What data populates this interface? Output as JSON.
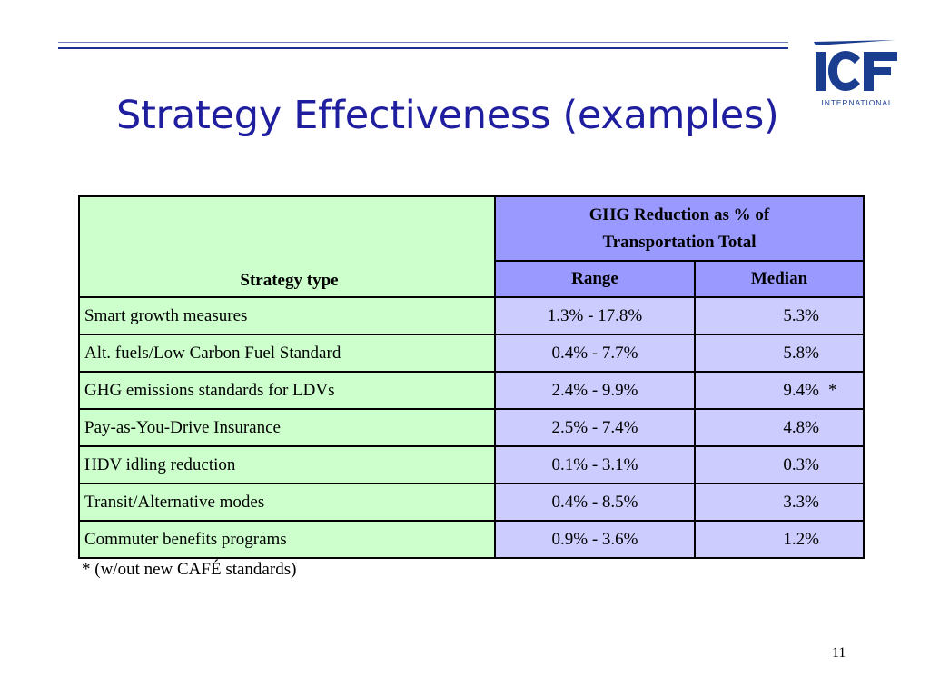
{
  "logo": {
    "text": "ICF",
    "subtext": "INTERNATIONAL",
    "color": "#1a3d8f"
  },
  "title": "Strategy Effectiveness (examples)",
  "table": {
    "strategy_header": "Strategy type",
    "group_header": "GHG Reduction as % of Transportation Total",
    "range_header": "Range",
    "median_header": "Median",
    "rows": [
      {
        "strategy": "Smart growth measures",
        "range": "1.3% - 17.8%",
        "median": "5.3%",
        "note": ""
      },
      {
        "strategy": "Alt. fuels/Low Carbon Fuel Standard",
        "range": "0.4% - 7.7%",
        "median": "5.8%",
        "note": ""
      },
      {
        "strategy": "GHG emissions standards for LDVs",
        "range": "2.4% - 9.9%",
        "median": "9.4%",
        "note": "*"
      },
      {
        "strategy": "Pay-as-You-Drive Insurance",
        "range": "2.5% - 7.4%",
        "median": "4.8%",
        "note": ""
      },
      {
        "strategy": "HDV idling reduction",
        "range": "0.1% - 3.1%",
        "median": "0.3%",
        "note": ""
      },
      {
        "strategy": "Transit/Alternative modes",
        "range": "0.4% - 8.5%",
        "median": "3.3%",
        "note": ""
      },
      {
        "strategy": "Commuter benefits programs",
        "range": "0.9% - 3.6%",
        "median": "1.2%",
        "note": ""
      }
    ]
  },
  "footnote": "* (w/out new CAFÉ standards)",
  "page_number": "11"
}
